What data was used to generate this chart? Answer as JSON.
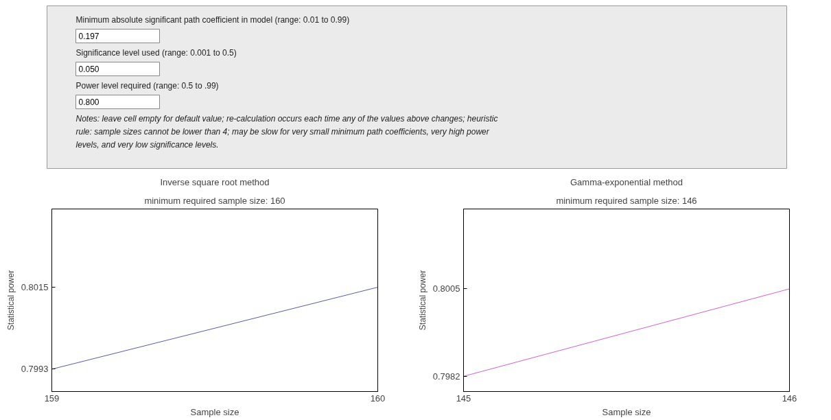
{
  "chart_data": [
    {
      "type": "other",
      "annotations": [
        "Minimum absolute significant path coefficient in model (range: 0.01 to 0.99)",
        "0.197",
        "Significance level used (range: 0.001 to 0.5)",
        "0.050",
        "Power level required (range: 0.5 to .99)",
        "0.800",
        "Notes: leave cell empty for default value; re-calculation occurs each time any of the values above changes; heuristic rule: sample sizes cannot be lower than 4; may be slow for very small minimum path coefficients, very high power levels, and very low significance levels."
      ]
    },
    {
      "type": "line",
      "title": "Inverse square root method",
      "subtitle": "minimum required sample size: 160",
      "xlabel": "Sample size",
      "ylabel": "Statistical power",
      "x": [
        159,
        160
      ],
      "series": [
        {
          "color": "#5a5aa8",
          "values": [
            0.7993,
            0.8015
          ]
        }
      ],
      "xlim": [
        159,
        160
      ],
      "xticks": [
        159,
        160
      ],
      "ylim": [
        0.7987,
        0.8036
      ],
      "yticks": [
        0.7993,
        0.8015
      ],
      "grid": false
    },
    {
      "type": "line",
      "title": "Gamma-exponential method",
      "subtitle": "minimum required sample size: 146",
      "xlabel": "Sample size",
      "ylabel": "Statistical power",
      "x": [
        145,
        146
      ],
      "series": [
        {
          "color": "#d060d0",
          "values": [
            0.7982,
            0.8005
          ]
        }
      ],
      "xlim": [
        145,
        146
      ],
      "xticks": [
        145,
        146
      ],
      "ylim": [
        0.7978,
        0.8026
      ],
      "yticks": [
        0.7982,
        0.8005
      ],
      "grid": false
    }
  ]
}
